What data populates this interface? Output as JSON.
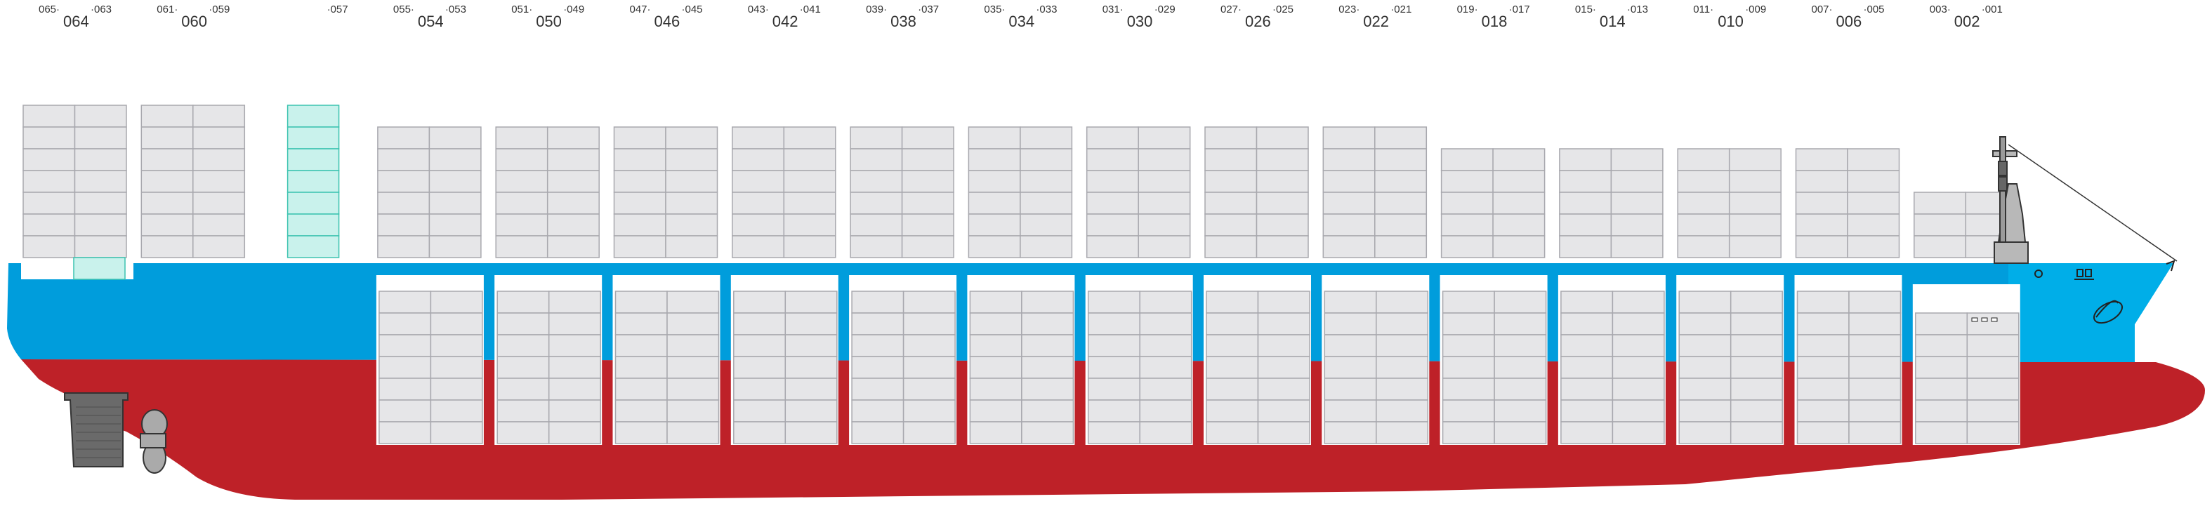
{
  "colors": {
    "hull_red": "#be2128",
    "topside_blue": "#009ddc",
    "bow_blue": "#00aee8",
    "container_fill": "#e6e6e8",
    "container_stroke": "#a8a8ae",
    "highlight_fill": "#c9f2ec",
    "highlight_stroke": "#3cc3b0",
    "hatch_white": "#ffffff",
    "rudder_gray": "#6a6a6a",
    "propeller_gray": "#aaaaaa",
    "bridge_gray": "#b8b8b8"
  },
  "bays": [
    {
      "bay": "064",
      "left": "065",
      "right": "063",
      "deck_tiers": 7,
      "deck_selected": false,
      "hold_tiers": 0,
      "hold_selected_cells": 1
    },
    {
      "bay": "060",
      "left": "061",
      "right": "059",
      "deck_tiers": 7,
      "deck_selected": false,
      "hold_tiers": 0,
      "hold_selected_cells": 0
    },
    {
      "bay": "",
      "left": "",
      "right": "057",
      "deck_tiers": 7,
      "deck_selected": true,
      "hold_tiers": 0,
      "hold_selected_cells": 0,
      "single_column": true
    },
    {
      "bay": "054",
      "left": "055",
      "right": "053",
      "deck_tiers": 6,
      "deck_selected": false,
      "hold_tiers": 7,
      "hold_selected_cells": 0
    },
    {
      "bay": "050",
      "left": "051",
      "right": "049",
      "deck_tiers": 6,
      "deck_selected": false,
      "hold_tiers": 7,
      "hold_selected_cells": 0
    },
    {
      "bay": "046",
      "left": "047",
      "right": "045",
      "deck_tiers": 6,
      "deck_selected": false,
      "hold_tiers": 7,
      "hold_selected_cells": 0
    },
    {
      "bay": "042",
      "left": "043",
      "right": "041",
      "deck_tiers": 6,
      "deck_selected": false,
      "hold_tiers": 7,
      "hold_selected_cells": 0
    },
    {
      "bay": "038",
      "left": "039",
      "right": "037",
      "deck_tiers": 6,
      "deck_selected": false,
      "hold_tiers": 7,
      "hold_selected_cells": 0
    },
    {
      "bay": "034",
      "left": "035",
      "right": "033",
      "deck_tiers": 6,
      "deck_selected": false,
      "hold_tiers": 7,
      "hold_selected_cells": 0
    },
    {
      "bay": "030",
      "left": "031",
      "right": "029",
      "deck_tiers": 6,
      "deck_selected": false,
      "hold_tiers": 7,
      "hold_selected_cells": 0
    },
    {
      "bay": "026",
      "left": "027",
      "right": "025",
      "deck_tiers": 6,
      "deck_selected": false,
      "hold_tiers": 7,
      "hold_selected_cells": 0
    },
    {
      "bay": "022",
      "left": "023",
      "right": "021",
      "deck_tiers": 6,
      "deck_selected": false,
      "hold_tiers": 7,
      "hold_selected_cells": 0
    },
    {
      "bay": "018",
      "left": "019",
      "right": "017",
      "deck_tiers": 5,
      "deck_selected": false,
      "hold_tiers": 7,
      "hold_selected_cells": 0
    },
    {
      "bay": "014",
      "left": "015",
      "right": "013",
      "deck_tiers": 5,
      "deck_selected": false,
      "hold_tiers": 7,
      "hold_selected_cells": 0
    },
    {
      "bay": "010",
      "left": "011",
      "right": "009",
      "deck_tiers": 5,
      "deck_selected": false,
      "hold_tiers": 7,
      "hold_selected_cells": 0
    },
    {
      "bay": "006",
      "left": "007",
      "right": "005",
      "deck_tiers": 5,
      "deck_selected": false,
      "hold_tiers": 7,
      "hold_selected_cells": 0
    },
    {
      "bay": "002",
      "left": "003",
      "right": "001",
      "deck_tiers": 3,
      "deck_selected": false,
      "hold_tiers": 6,
      "hold_selected_cells": 0
    }
  ]
}
